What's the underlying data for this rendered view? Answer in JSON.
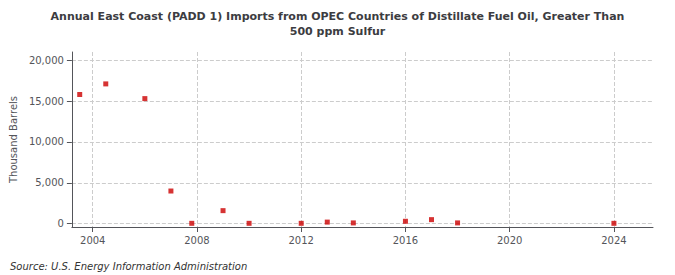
{
  "chart_data": {
    "type": "scatter",
    "title": "Annual East Coast (PADD 1) Imports from OPEC Countries of Distillate Fuel Oil, Greater Than\n500 ppm Sulfur",
    "ylabel": "Thousand Barrels",
    "annotations": [
      "Source: U.S. Energy Information Administration"
    ],
    "x": [
      2003.5,
      2004.5,
      2006,
      2007,
      2007.8,
      2009,
      2010,
      2012,
      2013,
      2014,
      2016,
      2017,
      2018,
      2024
    ],
    "values": [
      15800,
      17100,
      15300,
      4000,
      50,
      1600,
      50,
      50,
      200,
      100,
      300,
      500,
      100,
      50
    ],
    "color": "#cc0000",
    "marker": "square",
    "xlim": [
      2003.2,
      2025.5
    ],
    "xticks": [
      2004,
      2008,
      2012,
      2016,
      2020,
      2024
    ],
    "ylim": [
      -400,
      21000
    ],
    "yticks": [
      0,
      {
        "value": 5000,
        "label": "5,000"
      },
      {
        "value": 10000,
        "label": "10,000"
      },
      {
        "value": 15000,
        "label": "15,000"
      },
      {
        "value": 20000,
        "label": "20,000"
      }
    ],
    "grid": true
  }
}
